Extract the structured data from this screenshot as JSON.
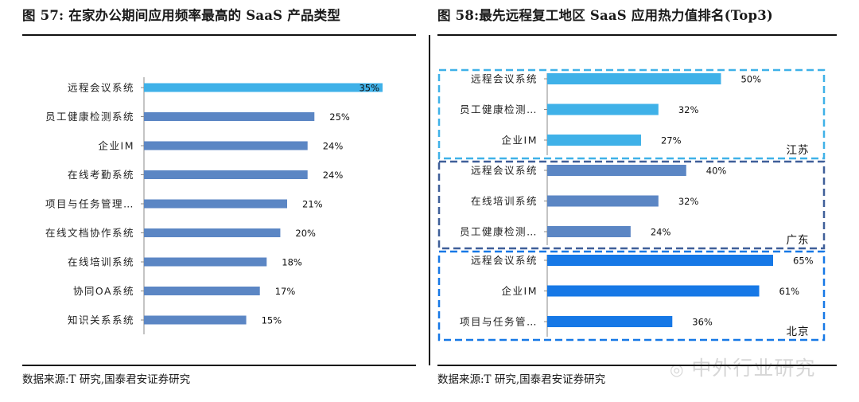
{
  "left_title": "图 57:  在家办公期间应用频率最高的 SaaS 产品类型",
  "right_title": "图 58:最先远程复工地区 SaaS 应用热力值排名(Top3)",
  "left_source": "数据来源:T 研究,国泰君安证券研究",
  "right_source": "数据来源:T 研究,国泰君安证券研究",
  "watermark": "中外行业研究",
  "chart_data": [
    {
      "type": "bar",
      "orientation": "horizontal",
      "title": "图 57:  在家办公期间应用频率最高的 SaaS 产品类型",
      "categories": [
        "远程会议系统",
        "员工健康检测系统",
        "企业IM",
        "在线考勤系统",
        "项目与任务管理…",
        "在线文档协作系统",
        "在线培训系统",
        "协同OA系统",
        "知识关系系统"
      ],
      "values": [
        35,
        25,
        24,
        24,
        21,
        20,
        18,
        17,
        15
      ],
      "labels": [
        "35%",
        "25%",
        "24%",
        "24%",
        "21%",
        "20%",
        "18%",
        "17%",
        "15%"
      ],
      "unit": "%",
      "xlim": [
        0,
        35
      ],
      "colors": {
        "highlight": "#3fb1e8",
        "normal": "#5b86c4"
      }
    },
    {
      "type": "bar",
      "orientation": "horizontal",
      "title": "图 58:最先远程复工地区 SaaS 应用热力值排名(Top3)",
      "unit": "%",
      "xlim": [
        0,
        65
      ],
      "groups": [
        {
          "region": "江苏",
          "color": "#3fb1e8",
          "border": "#3fb1e8",
          "categories": [
            "远程会议系统",
            "员工健康检测…",
            "企业IM"
          ],
          "values": [
            50,
            32,
            27
          ],
          "labels": [
            "50%",
            "32%",
            "27%"
          ]
        },
        {
          "region": "广东",
          "color": "#5b86c4",
          "border": "#3f5f99",
          "categories": [
            "远程会议系统",
            "在线培训系统",
            "员工健康检测…"
          ],
          "values": [
            40,
            32,
            24
          ],
          "labels": [
            "40%",
            "32%",
            "24%"
          ]
        },
        {
          "region": "北京",
          "color": "#1678e6",
          "border": "#1678e6",
          "categories": [
            "远程会议系统",
            "企业IM",
            "项目与任务管…"
          ],
          "values": [
            65,
            61,
            36
          ],
          "labels": [
            "65%",
            "61%",
            "36%"
          ]
        }
      ]
    }
  ]
}
